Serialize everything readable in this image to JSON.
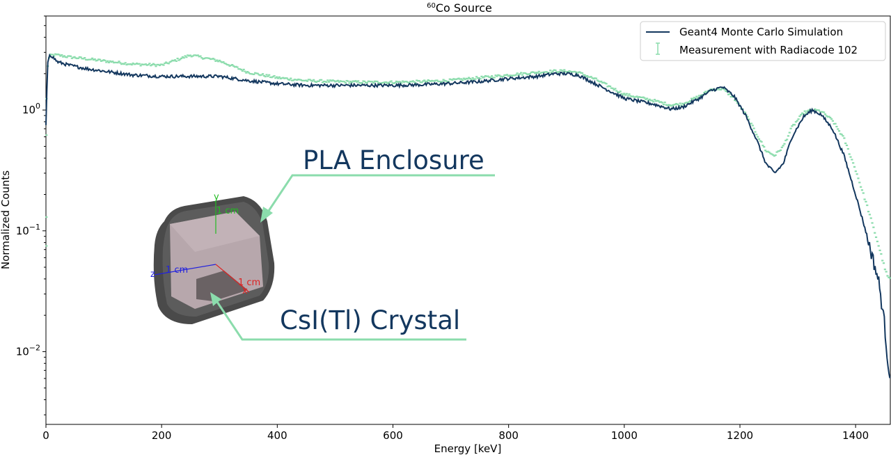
{
  "chart_data": {
    "type": "line",
    "title": "60Co Source",
    "title_parts": {
      "sup": "60",
      "main": "Co Source"
    },
    "xlabel": "Energy [keV]",
    "ylabel": "Normalized Counts",
    "xlim": [
      0,
      1460
    ],
    "ylim": [
      0.0025,
      6
    ],
    "yscale": "log",
    "grid": false,
    "legend_position": "top-right",
    "x_ticks": [
      0,
      200,
      400,
      600,
      800,
      1000,
      1200,
      1400
    ],
    "x_tick_labels": [
      "0",
      "200",
      "400",
      "600",
      "800",
      "1000",
      "1200",
      "1400"
    ],
    "y_ticks": [
      1,
      0.1,
      0.01
    ],
    "y_tick_labels": [
      {
        "base": "10",
        "exp": "0"
      },
      {
        "base": "10",
        "exp": "−1"
      },
      {
        "base": "10",
        "exp": "−2"
      }
    ],
    "series": [
      {
        "name": "Geant4 Monte Carlo Simulation",
        "style": "line",
        "color": "#13375e",
        "x": [
          0,
          3,
          6,
          10,
          20,
          40,
          70,
          100,
          150,
          200,
          250,
          300,
          350,
          400,
          450,
          500,
          550,
          600,
          650,
          700,
          750,
          800,
          850,
          880,
          900,
          920,
          950,
          1000,
          1050,
          1080,
          1100,
          1130,
          1150,
          1170,
          1190,
          1210,
          1230,
          1245,
          1260,
          1275,
          1290,
          1310,
          1325,
          1340,
          1360,
          1380,
          1400,
          1420,
          1440,
          1450,
          1455,
          1460
        ],
        "y": [
          0.75,
          2.4,
          2.9,
          2.8,
          2.5,
          2.35,
          2.2,
          2.1,
          1.95,
          1.9,
          1.9,
          1.9,
          1.75,
          1.65,
          1.6,
          1.6,
          1.6,
          1.6,
          1.62,
          1.66,
          1.72,
          1.82,
          1.9,
          2.0,
          2.0,
          1.95,
          1.65,
          1.25,
          1.12,
          1.02,
          1.05,
          1.25,
          1.45,
          1.55,
          1.3,
          0.9,
          0.55,
          0.36,
          0.3,
          0.36,
          0.6,
          0.88,
          1.0,
          0.92,
          0.7,
          0.42,
          0.2,
          0.09,
          0.038,
          0.017,
          0.009,
          0.006
        ]
      },
      {
        "name": "Measurement with Radiacode 102",
        "style": "errorbar",
        "color": "#8bdcac",
        "x": [
          0,
          3,
          6,
          10,
          20,
          40,
          70,
          100,
          150,
          200,
          250,
          300,
          350,
          400,
          450,
          500,
          550,
          600,
          650,
          700,
          750,
          800,
          850,
          880,
          900,
          920,
          950,
          1000,
          1050,
          1080,
          1100,
          1130,
          1150,
          1170,
          1190,
          1210,
          1230,
          1245,
          1260,
          1275,
          1290,
          1310,
          1325,
          1340,
          1360,
          1380,
          1400,
          1420,
          1440,
          1450,
          1455,
          1460
        ],
        "y": [
          0.9,
          2.3,
          2.8,
          2.85,
          2.85,
          2.75,
          2.65,
          2.55,
          2.4,
          2.35,
          2.85,
          2.55,
          2.05,
          1.85,
          1.75,
          1.72,
          1.7,
          1.7,
          1.72,
          1.76,
          1.85,
          1.95,
          2.05,
          2.1,
          2.1,
          2.05,
          1.8,
          1.35,
          1.2,
          1.1,
          1.12,
          1.3,
          1.48,
          1.5,
          1.25,
          0.92,
          0.62,
          0.46,
          0.42,
          0.5,
          0.72,
          0.95,
          1.0,
          0.98,
          0.82,
          0.58,
          0.32,
          0.16,
          0.075,
          0.05,
          0.042,
          0.04
        ]
      }
    ],
    "annotations": [
      {
        "text": "PLA Enclosure"
      },
      {
        "text": "CsI(Tl) Crystal"
      }
    ],
    "inset": {
      "axis_labels": {
        "y": "y",
        "y_unit": "1 cm",
        "z": "z",
        "z_unit": "1 cm",
        "x": "x",
        "x_unit": "1 cm"
      },
      "colors": {
        "enclosure": "#4a4a4a",
        "crystal": "#b7a7ac",
        "y_axis": "#22bb22",
        "z_axis": "#2222dd",
        "x_axis": "#dd2222"
      }
    }
  }
}
